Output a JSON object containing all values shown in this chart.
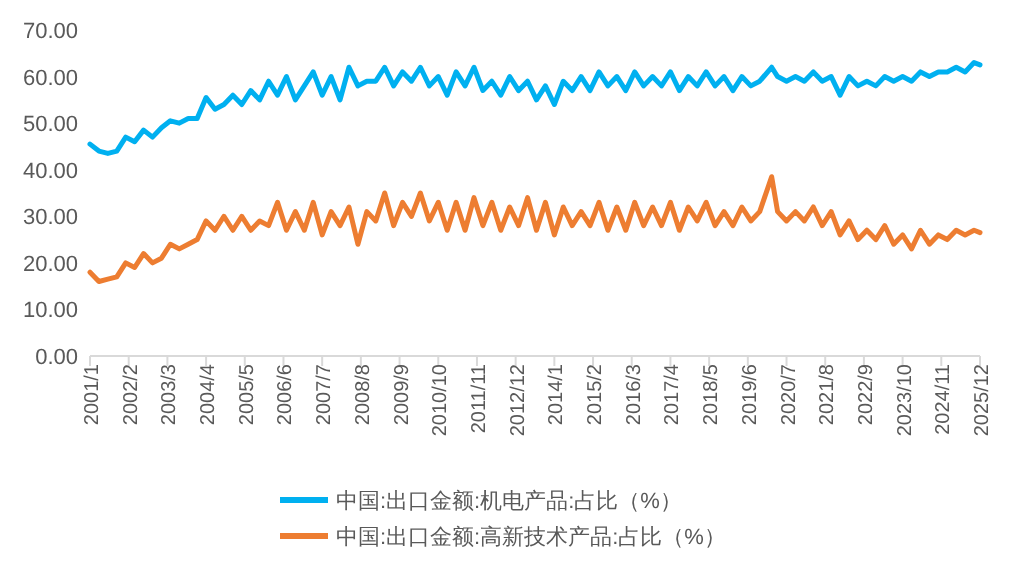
{
  "chart_data": {
    "type": "line",
    "legend": "bottom",
    "x": [
      "2001-01",
      "2001-04",
      "2001-07",
      "2001-10",
      "2002-01",
      "2002-04",
      "2002-07",
      "2002-10",
      "2003-01",
      "2003-04",
      "2003-07",
      "2003-10",
      "2004-01",
      "2004-04",
      "2004-07",
      "2004-10",
      "2005-01",
      "2005-04",
      "2005-07",
      "2005-10",
      "2006-01",
      "2006-04",
      "2006-07",
      "2006-10",
      "2007-01",
      "2007-04",
      "2007-07",
      "2007-10",
      "2008-01",
      "2008-04",
      "2008-07",
      "2008-10",
      "2009-01",
      "2009-04",
      "2009-07",
      "2009-10",
      "2010-01",
      "2010-04",
      "2010-07",
      "2010-10",
      "2011-01",
      "2011-04",
      "2011-07",
      "2011-10",
      "2012-01",
      "2012-04",
      "2012-07",
      "2012-10",
      "2013-01",
      "2013-04",
      "2013-07",
      "2013-10",
      "2014-01",
      "2014-04",
      "2014-07",
      "2014-10",
      "2015-01",
      "2015-04",
      "2015-07",
      "2015-10",
      "2016-01",
      "2016-04",
      "2016-07",
      "2016-10",
      "2017-01",
      "2017-04",
      "2017-07",
      "2017-10",
      "2018-01",
      "2018-04",
      "2018-07",
      "2018-10",
      "2019-01",
      "2019-04",
      "2019-07",
      "2019-10",
      "2020-02",
      "2020-04",
      "2020-07",
      "2020-10",
      "2021-01",
      "2021-04",
      "2021-07",
      "2021-10",
      "2022-01",
      "2022-04",
      "2022-07",
      "2022-10",
      "2023-01",
      "2023-04",
      "2023-07",
      "2023-10",
      "2024-01",
      "2024-04",
      "2024-07",
      "2024-10",
      "2025-01",
      "2025-04",
      "2025-07",
      "2025-10",
      "2025-12"
    ],
    "series": [
      {
        "name": "中国:出口金额:机电产品:占比（%）",
        "color": "#00b0f0",
        "values": [
          45.5,
          44,
          43.5,
          44,
          47,
          46,
          48.5,
          47,
          49,
          50.5,
          50,
          51,
          51,
          55.5,
          53,
          54,
          56,
          54,
          57,
          55,
          59,
          56,
          60,
          55,
          58,
          61,
          56,
          60,
          55,
          62,
          58,
          59,
          59,
          62,
          58,
          61,
          59,
          62,
          58,
          60,
          56,
          61,
          58,
          62,
          57,
          59,
          56,
          60,
          57,
          59,
          55,
          58,
          54,
          59,
          57,
          60,
          57,
          61,
          58,
          60,
          57,
          61,
          58,
          60,
          58,
          61,
          57,
          60,
          58,
          61,
          58,
          60,
          57,
          60,
          58,
          59,
          62,
          60,
          59,
          60,
          59,
          61,
          59,
          60,
          56,
          60,
          58,
          59,
          58,
          60,
          59,
          60,
          59,
          61,
          60,
          61,
          61,
          62,
          61,
          63,
          62.5
        ]
      },
      {
        "name": "中国:出口金额:高新技术产品:占比（%）",
        "color": "#ed7d31",
        "values": [
          18,
          16,
          16.5,
          17,
          20,
          19,
          22,
          20,
          21,
          24,
          23,
          24,
          25,
          29,
          27,
          30,
          27,
          30,
          27,
          29,
          28,
          33,
          27,
          31,
          27,
          33,
          26,
          31,
          28,
          32,
          24,
          31,
          29,
          35,
          28,
          33,
          30,
          35,
          29,
          33,
          27,
          33,
          27,
          34,
          28,
          33,
          27,
          32,
          28,
          34,
          27,
          33,
          26,
          32,
          28,
          31,
          28,
          33,
          27,
          32,
          27,
          33,
          28,
          32,
          28,
          33,
          27,
          32,
          29,
          33,
          28,
          31,
          28,
          32,
          29,
          31,
          38.5,
          31,
          29,
          31,
          29,
          32,
          28,
          31,
          26,
          29,
          25,
          27,
          25,
          28,
          24,
          26,
          23,
          27,
          24,
          26,
          25,
          27,
          26,
          27,
          26.5
        ]
      }
    ],
    "xlim": [
      "2001-01",
      "2025-12"
    ],
    "xticks": [
      {
        "value": "2001-01",
        "label": "2001/1"
      },
      {
        "value": "2002-02",
        "label": "2002/2"
      },
      {
        "value": "2003-03",
        "label": "2003/3"
      },
      {
        "value": "2004-04",
        "label": "2004/4"
      },
      {
        "value": "2005-05",
        "label": "2005/5"
      },
      {
        "value": "2006-06",
        "label": "2006/6"
      },
      {
        "value": "2007-07",
        "label": "2007/7"
      },
      {
        "value": "2008-08",
        "label": "2008/8"
      },
      {
        "value": "2009-09",
        "label": "2009/9"
      },
      {
        "value": "2010-10",
        "label": "2010/10"
      },
      {
        "value": "2011-11",
        "label": "2011/11"
      },
      {
        "value": "2012-12",
        "label": "2012/12"
      },
      {
        "value": "2014-01",
        "label": "2014/1"
      },
      {
        "value": "2015-02",
        "label": "2015/2"
      },
      {
        "value": "2016-03",
        "label": "2016/3"
      },
      {
        "value": "2017-04",
        "label": "2017/4"
      },
      {
        "value": "2018-05",
        "label": "2018/5"
      },
      {
        "value": "2019-06",
        "label": "2019/6"
      },
      {
        "value": "2020-07",
        "label": "2020/7"
      },
      {
        "value": "2021-08",
        "label": "2021/8"
      },
      {
        "value": "2022-09",
        "label": "2022/9"
      },
      {
        "value": "2023-10",
        "label": "2023/10"
      },
      {
        "value": "2024-11",
        "label": "2024/11"
      },
      {
        "value": "2025-12",
        "label": "2025/12"
      }
    ],
    "ylim": [
      0,
      70
    ],
    "yticks": [
      {
        "value": 0,
        "label": "0.00"
      },
      {
        "value": 10,
        "label": "10.00"
      },
      {
        "value": 20,
        "label": "20.00"
      },
      {
        "value": 30,
        "label": "30.00"
      },
      {
        "value": 40,
        "label": "40.00"
      },
      {
        "value": 50,
        "label": "50.00"
      },
      {
        "value": 60,
        "label": "60.00"
      },
      {
        "value": 70,
        "label": "70.00"
      }
    ]
  }
}
